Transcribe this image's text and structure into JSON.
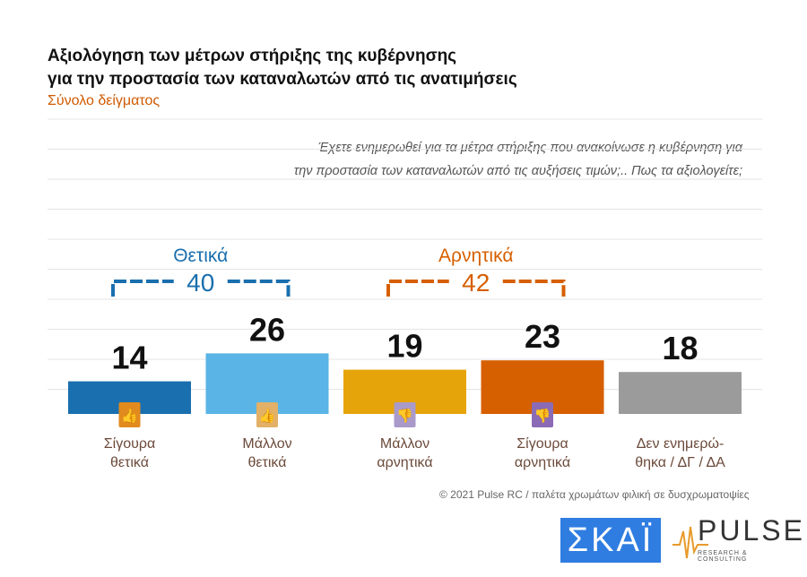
{
  "title_lines": [
    "Αξιολόγηση των μέτρων στήριξης της κυβέρνησης",
    "για την προστασία των καταναλωτών από τις ανατιμήσεις"
  ],
  "subtitle": "Σύνολο δείγματος",
  "question_lines": [
    "Έχετε ενημερωθεί για τα μέτρα στήριξης που ανακοίνωσε η κυβέρνηση για",
    "την προστασία των καταναλωτών από τις αυξήσεις τιμών;.. Πως τα αξιολογείτε;"
  ],
  "footer": "© 2021 Pulse RC   /   παλέτα χρωμάτων φιλική σε δυσχρωματοψίες",
  "logos": {
    "skai": "ΣΚΑΪ",
    "pulse": "PULSE",
    "pulse_sub": "RESEARCH & CONSULTING"
  },
  "chart_data": {
    "type": "bar",
    "categories": [
      [
        "Σίγουρα",
        "θετικά"
      ],
      [
        "Μάλλον",
        "θετικά"
      ],
      [
        "Μάλλον",
        "αρνητικά"
      ],
      [
        "Σίγουρα",
        "αρνητικά"
      ],
      [
        "Δεν ενημερώ-",
        "θηκα / ΔΓ / ΔΑ"
      ]
    ],
    "values": [
      14,
      26,
      19,
      23,
      18
    ],
    "colors": [
      "#1a6fae",
      "#5ab4e5",
      "#e6a40b",
      "#d65f00",
      "#9b9b9b"
    ],
    "icons": [
      "two-thumbs-up-icon",
      "thumb-up-icon",
      "thumb-down-icon",
      "two-thumbs-down-icon",
      null
    ],
    "icon_colors": [
      "#e18a1d",
      "#e2b066",
      "#a99ac9",
      "#8b6bb5",
      null
    ],
    "groups": [
      {
        "label": "Θετικά",
        "total": "40",
        "color": "#1a6fae",
        "from": 0,
        "to": 1
      },
      {
        "label": "Αρνητικά",
        "total": "42",
        "color": "#d65f00",
        "from": 2,
        "to": 3
      }
    ],
    "grid": true
  }
}
